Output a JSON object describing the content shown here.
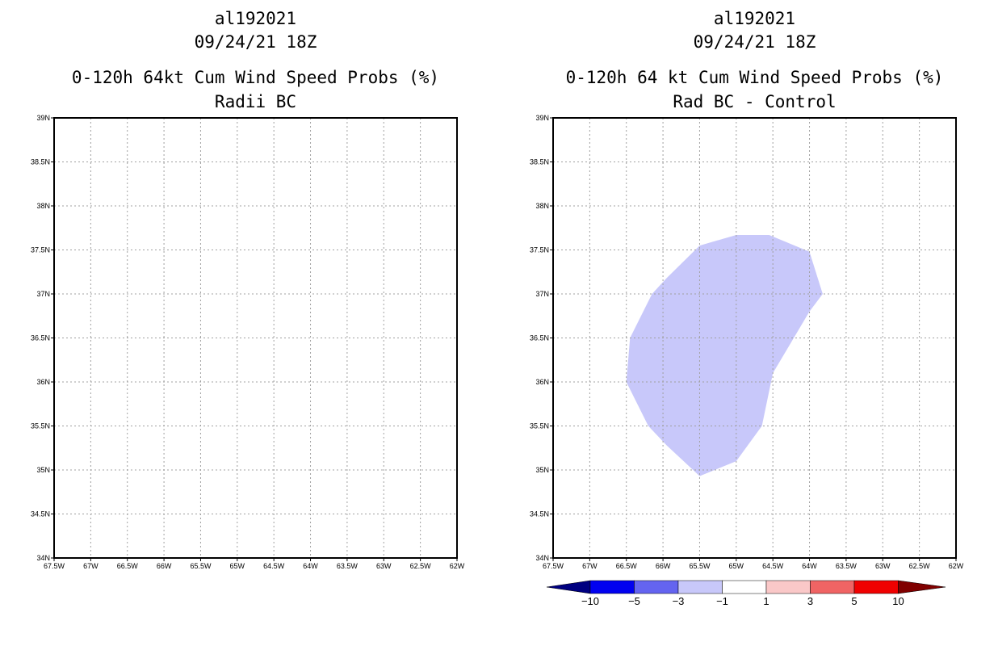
{
  "chart_data": [
    {
      "type": "map",
      "title_lines": [
        "al192021",
        "09/24/21 18Z",
        "0-120h 64kt Cum Wind Speed Probs (%)",
        "Radii BC"
      ],
      "x_range": [
        -67.5,
        -62
      ],
      "y_range": [
        34,
        39
      ],
      "x_ticks": [
        {
          "value": -67.5,
          "label": "67.5W"
        },
        {
          "value": -67,
          "label": "67W"
        },
        {
          "value": -66.5,
          "label": "66.5W"
        },
        {
          "value": -66,
          "label": "66W"
        },
        {
          "value": -65.5,
          "label": "65.5W"
        },
        {
          "value": -65,
          "label": "65W"
        },
        {
          "value": -64.5,
          "label": "64.5W"
        },
        {
          "value": -64,
          "label": "64W"
        },
        {
          "value": -63.5,
          "label": "63.5W"
        },
        {
          "value": -63,
          "label": "63W"
        },
        {
          "value": -62.5,
          "label": "62.5W"
        },
        {
          "value": -62,
          "label": "62W"
        }
      ],
      "y_ticks": [
        {
          "value": 34,
          "label": "34N"
        },
        {
          "value": 34.5,
          "label": "34.5N"
        },
        {
          "value": 35,
          "label": "35N"
        },
        {
          "value": 35.5,
          "label": "35.5N"
        },
        {
          "value": 36,
          "label": "36N"
        },
        {
          "value": 36.5,
          "label": "36.5N"
        },
        {
          "value": 37,
          "label": "37N"
        },
        {
          "value": 37.5,
          "label": "37.5N"
        },
        {
          "value": 38,
          "label": "38N"
        },
        {
          "value": 38.5,
          "label": "38.5N"
        },
        {
          "value": 39,
          "label": "39N"
        }
      ],
      "grid": true,
      "regions": []
    },
    {
      "type": "map",
      "title_lines": [
        "al192021",
        "09/24/21 18Z",
        "0-120h 64 kt Cum Wind Speed Probs (%)",
        "Rad BC - Control"
      ],
      "x_range": [
        -67.5,
        -62
      ],
      "y_range": [
        34,
        39
      ],
      "x_ticks": [
        {
          "value": -67.5,
          "label": "67.5W"
        },
        {
          "value": -67,
          "label": "67W"
        },
        {
          "value": -66.5,
          "label": "66.5W"
        },
        {
          "value": -66,
          "label": "66W"
        },
        {
          "value": -65.5,
          "label": "65.5W"
        },
        {
          "value": -65,
          "label": "65W"
        },
        {
          "value": -64.5,
          "label": "64.5W"
        },
        {
          "value": -64,
          "label": "64W"
        },
        {
          "value": -63.5,
          "label": "63.5W"
        },
        {
          "value": -63,
          "label": "63W"
        },
        {
          "value": -62.5,
          "label": "62.5W"
        },
        {
          "value": -62,
          "label": "62W"
        }
      ],
      "y_ticks": [
        {
          "value": 34,
          "label": "34N"
        },
        {
          "value": 34.5,
          "label": "34.5N"
        },
        {
          "value": 35,
          "label": "35N"
        },
        {
          "value": 35.5,
          "label": "35.5N"
        },
        {
          "value": 36,
          "label": "36N"
        },
        {
          "value": 36.5,
          "label": "36.5N"
        },
        {
          "value": 37,
          "label": "37N"
        },
        {
          "value": 37.5,
          "label": "37.5N"
        },
        {
          "value": 38,
          "label": "38N"
        },
        {
          "value": 38.5,
          "label": "38.5N"
        },
        {
          "value": 39,
          "label": "39N"
        }
      ],
      "grid": true,
      "regions": [
        {
          "name": "difference -3 to -1",
          "color": "#c8c8fa",
          "points": [
            [
              -65.5,
              37.55
            ],
            [
              -65.0,
              37.67
            ],
            [
              -64.55,
              37.67
            ],
            [
              -64.0,
              37.48
            ],
            [
              -63.82,
              37.0
            ],
            [
              -64.0,
              36.8
            ],
            [
              -64.5,
              36.1
            ],
            [
              -64.65,
              35.5
            ],
            [
              -65.0,
              35.1
            ],
            [
              -65.5,
              34.93
            ],
            [
              -65.95,
              35.28
            ],
            [
              -66.2,
              35.5
            ],
            [
              -66.5,
              36.0
            ],
            [
              -66.45,
              36.5
            ],
            [
              -66.15,
              37.0
            ],
            [
              -65.95,
              37.18
            ]
          ]
        }
      ],
      "colorbar": {
        "levels": [
          "-10",
          "-5",
          "-3",
          "-1",
          "1",
          "3",
          "5",
          "10"
        ],
        "colors": [
          "#000080",
          "#0000f0",
          "#6464f0",
          "#c8c8fa",
          "#ffffff",
          "#fac8c8",
          "#f06464",
          "#f00000",
          "#800000"
        ]
      }
    }
  ]
}
